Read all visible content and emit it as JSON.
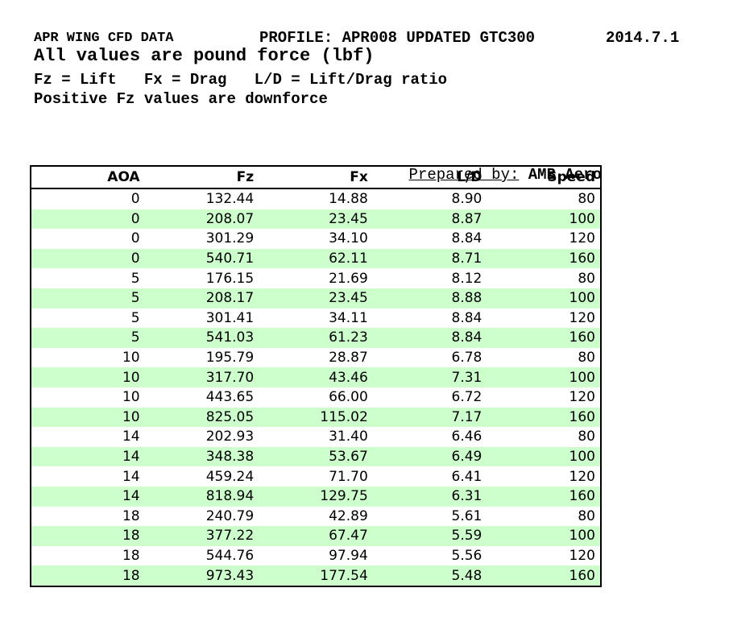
{
  "header": {
    "title": "APR WING CFD DATA",
    "profile": "PROFILE: APR008 UPDATED GTC300",
    "date": "2014.7.1",
    "units_note": "All values are pound force (lbf)",
    "legend": "Fz = Lift   Fx = Drag   L/D = Lift/Drag ratio",
    "downforce_note": "Positive Fz values are downforce"
  },
  "prepared_by": {
    "label": "Prepared by:",
    "value": " AMB Aero"
  },
  "table": {
    "columns": [
      "AOA",
      "Fz",
      "Fx",
      "L/D",
      "Speed"
    ],
    "rows": [
      [
        "0",
        "132.44",
        "14.88",
        "8.90",
        "80"
      ],
      [
        "0",
        "208.07",
        "23.45",
        "8.87",
        "100"
      ],
      [
        "0",
        "301.29",
        "34.10",
        "8.84",
        "120"
      ],
      [
        "0",
        "540.71",
        "62.11",
        "8.71",
        "160"
      ],
      [
        "5",
        "176.15",
        "21.69",
        "8.12",
        "80"
      ],
      [
        "5",
        "208.17",
        "23.45",
        "8.88",
        "100"
      ],
      [
        "5",
        "301.41",
        "34.11",
        "8.84",
        "120"
      ],
      [
        "5",
        "541.03",
        "61.23",
        "8.84",
        "160"
      ],
      [
        "10",
        "195.79",
        "28.87",
        "6.78",
        "80"
      ],
      [
        "10",
        "317.70",
        "43.46",
        "7.31",
        "100"
      ],
      [
        "10",
        "443.65",
        "66.00",
        "6.72",
        "120"
      ],
      [
        "10",
        "825.05",
        "115.02",
        "7.17",
        "160"
      ],
      [
        "14",
        "202.93",
        "31.40",
        "6.46",
        "80"
      ],
      [
        "14",
        "348.38",
        "53.67",
        "6.49",
        "100"
      ],
      [
        "14",
        "459.24",
        "71.70",
        "6.41",
        "120"
      ],
      [
        "14",
        "818.94",
        "129.75",
        "6.31",
        "160"
      ],
      [
        "18",
        "240.79",
        "42.89",
        "5.61",
        "80"
      ],
      [
        "18",
        "377.22",
        "67.47",
        "5.59",
        "100"
      ],
      [
        "18",
        "544.76",
        "97.94",
        "5.56",
        "120"
      ],
      [
        "18",
        "973.43",
        "177.54",
        "5.48",
        "160"
      ]
    ]
  },
  "colors": {
    "row_alt": "#ccffcc",
    "border": "#000000",
    "text": "#000000",
    "background": "#ffffff"
  }
}
